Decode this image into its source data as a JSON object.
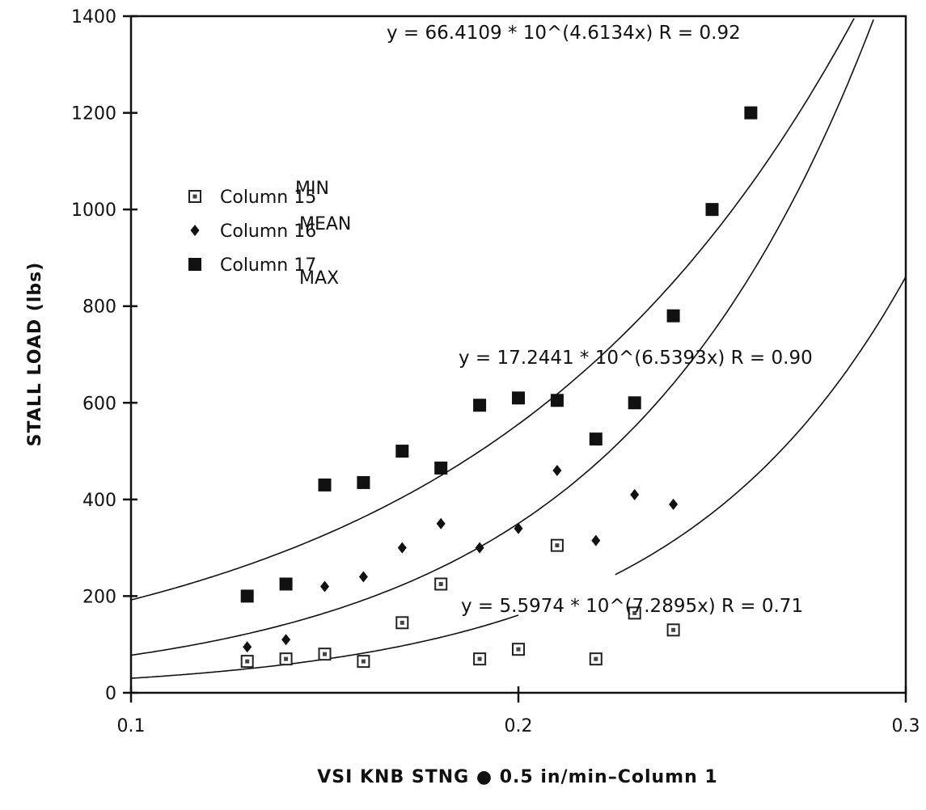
{
  "chart_data": {
    "type": "scatter",
    "xlabel": "VSI KNB STNG  ●  0.5 in/min–Column 1",
    "ylabel": "STALL LOAD  (lbs)",
    "xlim": [
      0.1,
      0.3
    ],
    "ylim": [
      0,
      1400
    ],
    "x_ticks": [
      "0.1",
      "0.2",
      "0.3"
    ],
    "y_ticks": [
      "0",
      "200",
      "400",
      "600",
      "800",
      "1000",
      "1200",
      "1400"
    ],
    "grid": false,
    "legend_position": "left",
    "series": [
      {
        "name": "Column 15",
        "tag": "MIN",
        "marker": "open-square",
        "x": [
          0.13,
          0.14,
          0.15,
          0.16,
          0.17,
          0.18,
          0.19,
          0.2,
          0.21,
          0.22,
          0.23,
          0.24
        ],
        "y": [
          65,
          70,
          80,
          65,
          145,
          225,
          70,
          90,
          305,
          70,
          165,
          130
        ]
      },
      {
        "name": "Column 16",
        "tag": "MEAN",
        "marker": "diamond",
        "x": [
          0.13,
          0.14,
          0.15,
          0.16,
          0.17,
          0.18,
          0.19,
          0.2,
          0.21,
          0.22,
          0.23,
          0.24
        ],
        "y": [
          95,
          110,
          220,
          240,
          300,
          350,
          300,
          340,
          460,
          315,
          410,
          390
        ]
      },
      {
        "name": "Column 17",
        "tag": "MAX",
        "marker": "filled-square",
        "x": [
          0.13,
          0.14,
          0.15,
          0.16,
          0.17,
          0.18,
          0.19,
          0.2,
          0.21,
          0.22,
          0.23,
          0.24,
          0.25,
          0.26
        ],
        "y": [
          200,
          225,
          430,
          435,
          500,
          465,
          595,
          610,
          605,
          525,
          600,
          780,
          1000,
          1200
        ]
      }
    ],
    "fits": [
      {
        "label": "y = 66.4109 * 10^(4.6134x)   R = 0.92",
        "a": 66.4109,
        "b": 4.6134,
        "x_start": 0.1,
        "x_end": 0.3
      },
      {
        "label": "y = 17.2441 * 10^(6.5393x)   R = 0.90",
        "a": 17.2441,
        "b": 6.5393,
        "x_start": 0.1,
        "x_end": 0.3
      },
      {
        "label": "y = 5.5974 * 10^(7.2895x)   R = 0.71",
        "a": 5.5974,
        "b": 7.2895,
        "x_start": 0.1,
        "x_end": 0.2
      },
      {
        "label": "",
        "a": 5.5974,
        "b": 7.2895,
        "x_start": 0.225,
        "x_end": 0.3
      }
    ]
  }
}
